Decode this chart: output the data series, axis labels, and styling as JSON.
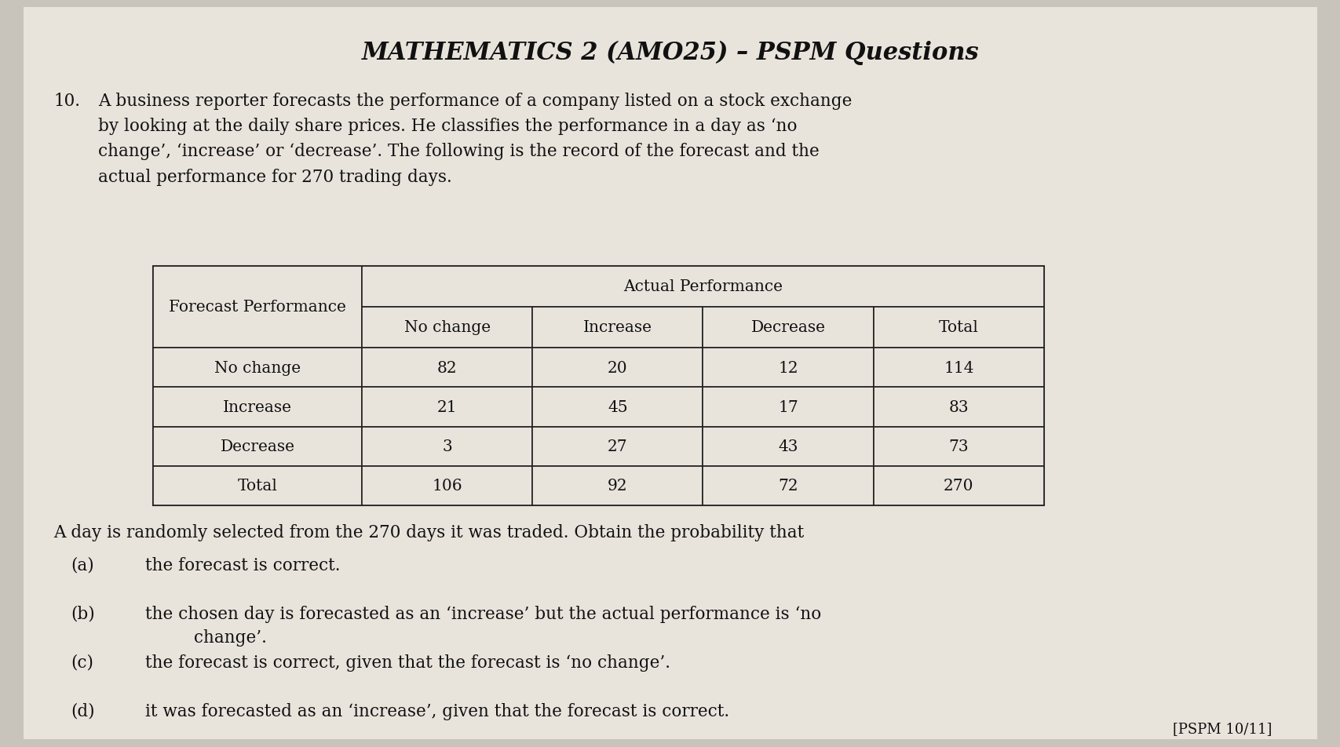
{
  "title": "MATHEMATICS 2 (AMO25) – PSPM Questions",
  "question_number": "10.",
  "question_text": "A business reporter forecasts the performance of a company listed on a stock exchange\nby looking at the daily share prices. He classifies the performance in a day as ‘no\nchange’, ‘increase’ or ‘decrease’. The following is the record of the forecast and the\nactual performance for 270 trading days.",
  "table": {
    "col_header_top": "Actual Performance",
    "col_headers": [
      "No change",
      "Increase",
      "Decrease",
      "Total"
    ],
    "row_header_label": "Forecast Performance",
    "rows": [
      {
        "label": "No change",
        "values": [
          82,
          20,
          12,
          114
        ]
      },
      {
        "label": "Increase",
        "values": [
          21,
          45,
          17,
          83
        ]
      },
      {
        "label": "Decrease",
        "values": [
          3,
          27,
          43,
          73
        ]
      },
      {
        "label": "Total",
        "values": [
          106,
          92,
          72,
          270
        ]
      }
    ]
  },
  "sub_intro": "A day is randomly selected from the 270 days it was traded. Obtain the probability that",
  "parts": [
    {
      "label": "(a)",
      "text": "the forecast is correct."
    },
    {
      "label": "(b)",
      "text": "the chosen day is forecasted as an ‘increase’ but the actual performance is ‘no\n         change’."
    },
    {
      "label": "(c)",
      "text": "the forecast is correct, given that the forecast is ‘no change’."
    },
    {
      "label": "(d)",
      "text": "it was forecasted as an ‘increase’, given that the forecast is correct."
    }
  ],
  "footer": "[PSPM 10/11]",
  "bg_color": "#c8c4bc",
  "page_color": "#e8e4dc",
  "text_color": "#111111",
  "table_bg": "#e8e4dc",
  "title_font_size": 22,
  "body_font_size": 15.5,
  "table_font_size": 14.5
}
